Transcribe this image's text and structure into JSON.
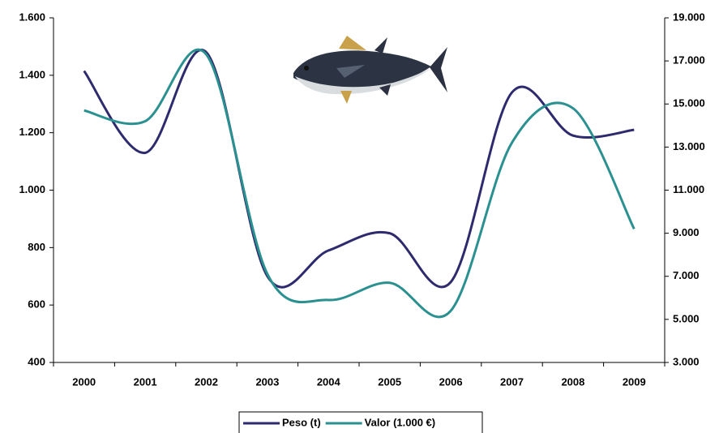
{
  "chart_data": {
    "type": "line",
    "categories": [
      "2000",
      "2001",
      "2002",
      "2003",
      "2004",
      "2005",
      "2006",
      "2007",
      "2008",
      "2009"
    ],
    "series": [
      {
        "name": "Peso (t)",
        "color": "#2e2a6e",
        "values": [
          1415,
          1130,
          1480,
          700,
          790,
          850,
          680,
          1340,
          1190,
          1210
        ]
      },
      {
        "name": "Valor (1.000 €)",
        "color": "#2a9090",
        "axis": "y2",
        "values": [
          14700,
          14200,
          17300,
          7100,
          5900,
          6700,
          5400,
          13200,
          14800,
          9200
        ]
      }
    ],
    "ylim": [
      400,
      1600
    ],
    "yticks": [
      400,
      600,
      800,
      {
        "value": 1000,
        "label": "1.000"
      },
      {
        "value": 1200,
        "label": "1.200"
      },
      {
        "value": 1400,
        "label": "1.400"
      },
      {
        "value": 1600,
        "label": "1.600"
      }
    ],
    "y2lim": [
      3000,
      19000
    ],
    "y2ticks": [
      {
        "value": 3000,
        "label": "3.000"
      },
      {
        "value": 5000,
        "label": "5.000"
      },
      {
        "value": 7000,
        "label": "7.000"
      },
      {
        "value": 9000,
        "label": "9.000"
      },
      {
        "value": 11000,
        "label": "11.000"
      },
      {
        "value": 13000,
        "label": "13.000"
      },
      {
        "value": 15000,
        "label": "15.000"
      },
      {
        "value": 17000,
        "label": "17.000"
      },
      {
        "value": 19000,
        "label": "19.000"
      }
    ],
    "legend": "bottom",
    "smooth": true
  }
}
